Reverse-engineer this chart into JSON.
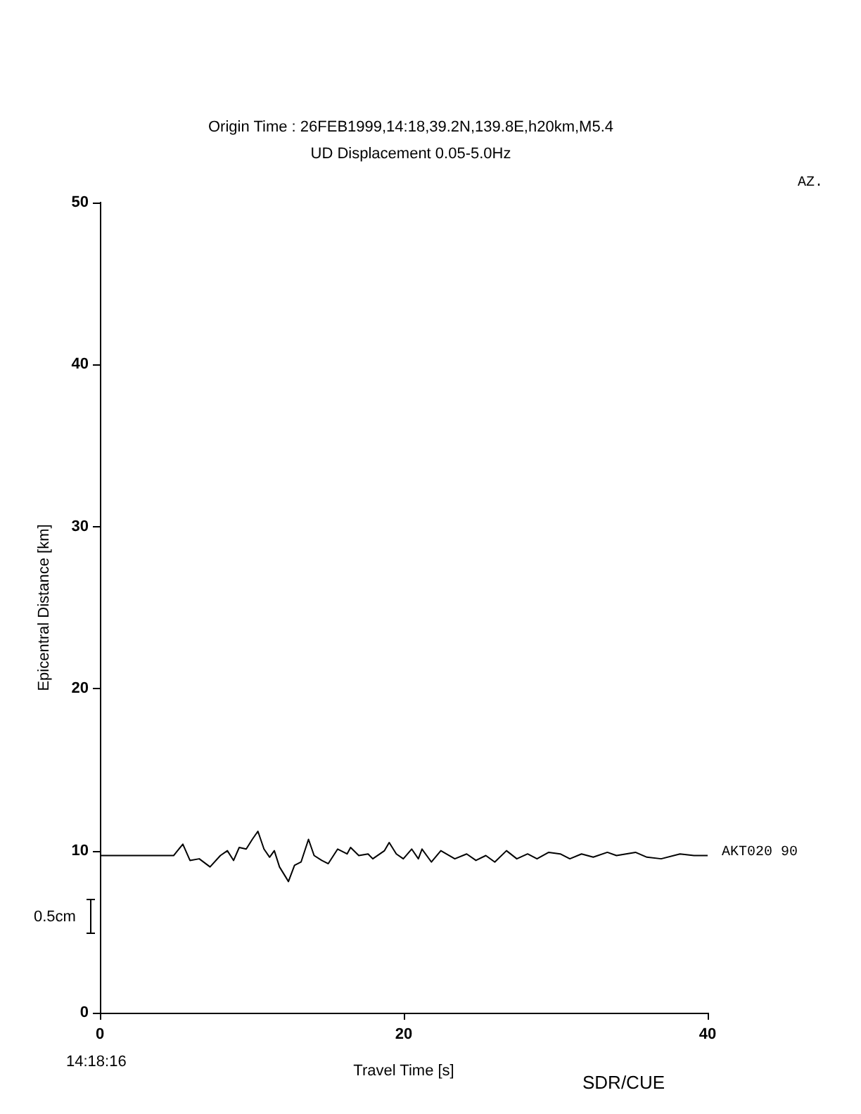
{
  "chart_data": {
    "type": "line",
    "title": "Origin Time : 26FEB1999,14:18,39.2N,139.8E,h20km,M5.4",
    "subtitle": "UD Displacement 0.05-5.0Hz",
    "xlabel": "Travel Time [s]",
    "ylabel": "Epicentral Distance [km]",
    "xlim": [
      0,
      40
    ],
    "xticks": [
      0,
      20,
      40
    ],
    "ylim": [
      0,
      50
    ],
    "yticks": [
      0,
      10,
      20,
      30,
      40,
      50
    ],
    "grid": false,
    "marker": "none",
    "line_style": "solid",
    "annotations": [
      "AZ.",
      "14:18:16",
      "0.5cm",
      "SDR/CUE",
      {
        "text": "AKT020 90",
        "x": 40,
        "y": 9.7
      }
    ],
    "series": [
      {
        "color": "#000000",
        "x": [
          0,
          4.23,
          4.85,
          5.46,
          5.93,
          6.54,
          7.25,
          7.93,
          8.39,
          8.8,
          9.17,
          9.63,
          10.03,
          10.4,
          10.8,
          11.17,
          11.48,
          11.82,
          12.41,
          12.81,
          13.24,
          13.73,
          14.1,
          14.6,
          15.03,
          15.65,
          16.27,
          16.5,
          17.04,
          17.65,
          17.96,
          18.73,
          19.04,
          19.51,
          19.97,
          20.52,
          20.96,
          21.2,
          21.82,
          22.44,
          23.36,
          24.14,
          24.75,
          25.4,
          25.99,
          26.76,
          27.44,
          28.15,
          28.77,
          29.54,
          30.3,
          30.93,
          31.7,
          32.47,
          33.4,
          34.0,
          35.25,
          36.0,
          36.94,
          38.18,
          39.1,
          40
        ],
        "values": [
          9.7,
          9.7,
          9.7,
          10.4,
          9.4,
          9.5,
          9.0,
          9.7,
          10.0,
          9.4,
          10.2,
          10.1,
          10.7,
          11.2,
          10.1,
          9.6,
          10.0,
          9.0,
          8.1,
          9.1,
          9.3,
          10.7,
          9.7,
          9.4,
          9.2,
          10.1,
          9.8,
          10.2,
          9.7,
          9.8,
          9.5,
          10.0,
          10.5,
          9.8,
          9.5,
          10.1,
          9.5,
          10.1,
          9.3,
          10.0,
          9.5,
          9.8,
          9.4,
          9.7,
          9.3,
          10.0,
          9.5,
          9.8,
          9.5,
          9.9,
          9.8,
          9.5,
          9.8,
          9.6,
          9.9,
          9.7,
          9.9,
          9.6,
          9.5,
          9.8,
          9.7,
          9.7
        ]
      }
    ]
  }
}
